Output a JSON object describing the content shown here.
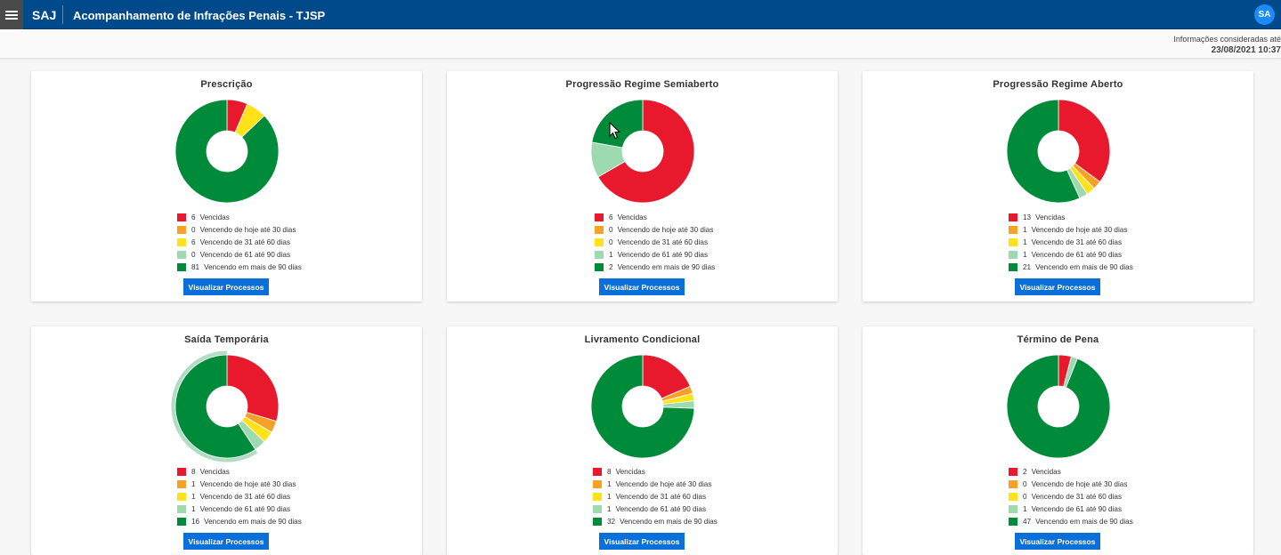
{
  "header": {
    "brand": "SAJ",
    "title": "Acompanhamento de Infrações Penais - TJSP",
    "avatar_initials": "SA"
  },
  "info": {
    "label": "Informações consideradas até",
    "datetime": "23/08/2021 10:37"
  },
  "colors": {
    "vencidas": "#e8192c",
    "hoje_30": "#f7a128",
    "d31_60": "#ffe21a",
    "d61_90": "#9edab0",
    "mais_90": "#008b3a",
    "header_bg": "#004a8b",
    "button": "#0a6fd8"
  },
  "legend_labels": [
    "Vencidas",
    "Vencendo de hoje até 30 dias",
    "Vencendo de 31 até 60 dias",
    "Vencendo de 61 até 90 dias",
    "Vencendo em mais de 90 dias"
  ],
  "button_label": "Visualizar Processos",
  "cards": [
    {
      "title": "Prescrição",
      "values": [
        6,
        0,
        6,
        0,
        81
      ]
    },
    {
      "title": "Progressão Regime Semiaberto",
      "values": [
        6,
        0,
        0,
        1,
        2
      ]
    },
    {
      "title": "Progressão Regime Aberto",
      "values": [
        13,
        1,
        1,
        1,
        21
      ]
    },
    {
      "title": "Saída Temporária",
      "values": [
        8,
        1,
        1,
        1,
        16
      ],
      "highlighted_segment": 4
    },
    {
      "title": "Livramento Condicional",
      "values": [
        8,
        1,
        1,
        1,
        32
      ]
    },
    {
      "title": "Término de Pena",
      "values": [
        2,
        0,
        0,
        1,
        47
      ]
    }
  ],
  "chart_data": [
    {
      "type": "pie",
      "title": "Prescrição",
      "categories": [
        "Vencidas",
        "Vencendo de hoje até 30 dias",
        "Vencendo de 31 até 60 dias",
        "Vencendo de 61 até 90 dias",
        "Vencendo em mais de 90 dias"
      ],
      "values": [
        6,
        0,
        6,
        0,
        81
      ],
      "legend": "bottom"
    },
    {
      "type": "pie",
      "title": "Progressão Regime Semiaberto",
      "categories": [
        "Vencidas",
        "Vencendo de hoje até 30 dias",
        "Vencendo de 31 até 60 dias",
        "Vencendo de 61 até 90 dias",
        "Vencendo em mais de 90 dias"
      ],
      "values": [
        6,
        0,
        0,
        1,
        2
      ],
      "legend": "bottom"
    },
    {
      "type": "pie",
      "title": "Progressão Regime Aberto",
      "categories": [
        "Vencidas",
        "Vencendo de hoje até 30 dias",
        "Vencendo de 31 até 60 dias",
        "Vencendo de 61 até 90 dias",
        "Vencendo em mais de 90 dias"
      ],
      "values": [
        13,
        1,
        1,
        1,
        21
      ],
      "legend": "bottom"
    },
    {
      "type": "pie",
      "title": "Saída Temporária",
      "categories": [
        "Vencidas",
        "Vencendo de hoje até 30 dias",
        "Vencendo de 31 até 60 dias",
        "Vencendo de 61 até 90 dias",
        "Vencendo em mais de 90 dias"
      ],
      "values": [
        8,
        1,
        1,
        1,
        16
      ],
      "legend": "bottom"
    },
    {
      "type": "pie",
      "title": "Livramento Condicional",
      "categories": [
        "Vencidas",
        "Vencendo de hoje até 30 dias",
        "Vencendo de 31 até 60 dias",
        "Vencendo de 61 até 90 dias",
        "Vencendo em mais de 90 dias"
      ],
      "values": [
        8,
        1,
        1,
        1,
        32
      ],
      "legend": "bottom"
    },
    {
      "type": "pie",
      "title": "Término de Pena",
      "categories": [
        "Vencidas",
        "Vencendo de hoje até 30 dias",
        "Vencendo de 31 até 60 dias",
        "Vencendo de 61 até 90 dias",
        "Vencendo em mais de 90 dias"
      ],
      "values": [
        2,
        0,
        0,
        1,
        47
      ],
      "legend": "bottom"
    }
  ]
}
